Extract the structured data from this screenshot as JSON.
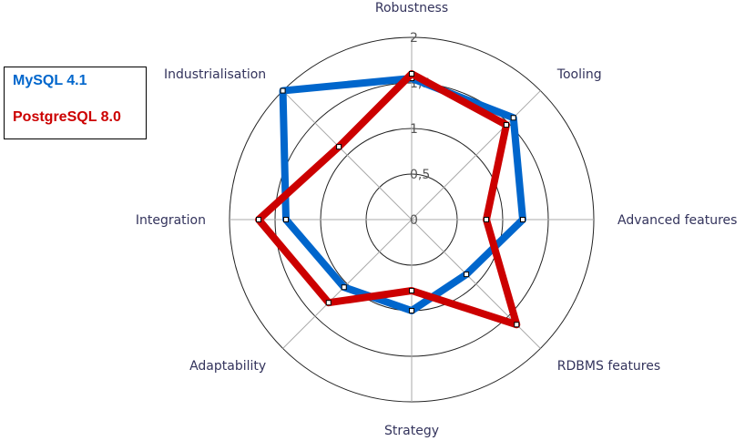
{
  "chart_data": {
    "type": "radar",
    "axes": [
      "Robustness",
      "Tooling",
      "Advanced features",
      "RDBMS features",
      "Strategy",
      "Adaptability",
      "Integration",
      "Industrialisation"
    ],
    "ticks": [
      "0",
      "0,5",
      "1",
      "1,5",
      "2"
    ],
    "rmax": 2,
    "series": [
      {
        "name": "MySQL 4.1",
        "color": "#0066cc",
        "values": [
          1.55,
          1.58,
          1.22,
          0.85,
          1.0,
          1.05,
          1.38,
          2.0
        ]
      },
      {
        "name": "PostgreSQL 8.0",
        "color": "#cc0000",
        "values": [
          1.6,
          1.47,
          0.82,
          1.63,
          0.78,
          1.29,
          1.68,
          1.13
        ]
      }
    ],
    "legend_position": "left"
  }
}
